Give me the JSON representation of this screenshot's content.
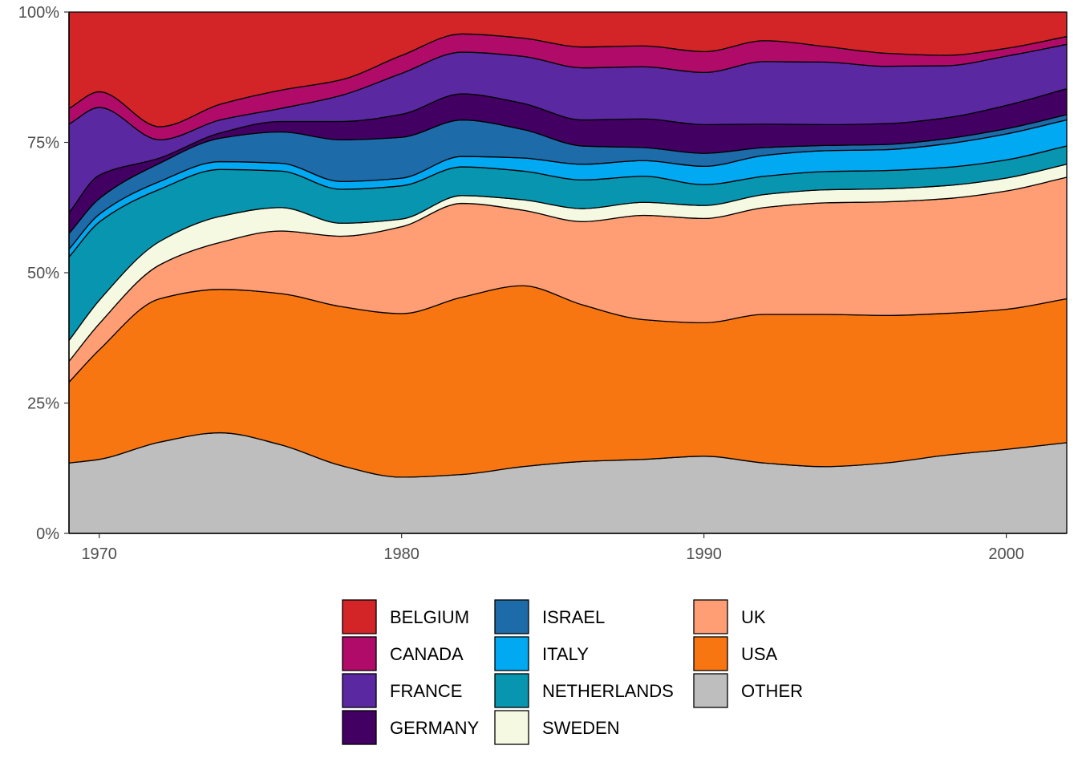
{
  "chart_data": {
    "type": "area",
    "stacked": "percent",
    "smooth": true,
    "title": "",
    "xlabel": "",
    "ylabel": "",
    "xlim": [
      1969,
      2002
    ],
    "ylim": [
      0,
      100
    ],
    "x_ticks": [
      1970,
      1980,
      1990,
      2000
    ],
    "x_tick_labels": [
      "1970",
      "1980",
      "1990",
      "2000"
    ],
    "y_ticks": [
      0,
      25,
      50,
      75,
      100
    ],
    "y_tick_labels": [
      "0%",
      "25%",
      "50%",
      "75%",
      "100%"
    ],
    "grid": false,
    "legend_position": "bottom",
    "stack_order_bottom_to_top": [
      "OTHER",
      "USA",
      "UK",
      "SWEDEN",
      "NETHERLANDS",
      "ITALY",
      "ISRAEL",
      "GERMANY",
      "FRANCE",
      "CANADA",
      "BELGIUM"
    ],
    "x": [
      1969,
      1970,
      1972,
      1974,
      1976,
      1978,
      1980,
      1982,
      1984,
      1986,
      1988,
      1990,
      1992,
      1994,
      1996,
      1998,
      2000,
      2002
    ],
    "series": [
      {
        "name": "OTHER",
        "color": "#BEBEBE",
        "values": [
          13.5,
          14.2,
          17.5,
          19.3,
          17.0,
          13.0,
          11.0,
          11.3,
          12.8,
          13.8,
          14.2,
          14.8,
          13.5,
          12.8,
          13.5,
          15.0,
          16.2,
          17.4
        ]
      },
      {
        "name": "USA",
        "color": "#F87612",
        "values": [
          15.5,
          21.0,
          27.5,
          27.5,
          29.0,
          30.5,
          32.0,
          34.0,
          34.7,
          30.0,
          26.8,
          25.6,
          28.5,
          29.2,
          28.3,
          27.2,
          27.0,
          27.6
        ]
      },
      {
        "name": "UK",
        "color": "#FF9E75",
        "values": [
          4.0,
          5.0,
          6.5,
          9.0,
          12.0,
          13.5,
          17.0,
          18.0,
          14.5,
          16.0,
          20.0,
          20.0,
          20.5,
          21.4,
          21.8,
          22.0,
          22.8,
          23.3
        ]
      },
      {
        "name": "SWEDEN",
        "color": "#F5F9E2",
        "values": [
          4.0,
          4.5,
          4.5,
          5.0,
          4.5,
          2.5,
          1.5,
          1.5,
          2.0,
          2.5,
          2.5,
          2.5,
          2.5,
          2.5,
          2.5,
          2.5,
          2.5,
          2.5
        ]
      },
      {
        "name": "NETHERLANDS",
        "color": "#0895AF",
        "values": [
          16.0,
          15.0,
          10.0,
          9.0,
          7.0,
          6.5,
          6.5,
          5.5,
          5.5,
          5.5,
          5.0,
          4.0,
          3.5,
          3.5,
          3.5,
          3.5,
          3.5,
          3.5
        ]
      },
      {
        "name": "ITALY",
        "color": "#00A9F1",
        "values": [
          1.5,
          1.5,
          1.5,
          1.5,
          1.5,
          1.5,
          1.5,
          2.0,
          2.5,
          3.0,
          3.0,
          3.5,
          4.0,
          4.0,
          4.0,
          4.5,
          5.0,
          5.0
        ]
      },
      {
        "name": "ISRAEL",
        "color": "#1D6BA8",
        "values": [
          3.0,
          3.0,
          3.5,
          4.5,
          6.0,
          8.0,
          8.0,
          7.0,
          5.5,
          3.5,
          2.5,
          2.5,
          1.5,
          1.0,
          1.0,
          1.0,
          1.0,
          1.0
        ]
      },
      {
        "name": "GERMANY",
        "color": "#430063",
        "values": [
          4.0,
          4.5,
          1.0,
          1.0,
          2.0,
          3.5,
          4.5,
          5.0,
          5.0,
          5.0,
          5.5,
          5.5,
          4.5,
          4.0,
          4.0,
          4.0,
          4.5,
          5.0
        ]
      },
      {
        "name": "FRANCE",
        "color": "#5A28A0",
        "values": [
          17.0,
          13.0,
          3.5,
          2.5,
          2.5,
          5.0,
          8.0,
          8.0,
          9.0,
          10.0,
          10.0,
          10.0,
          12.0,
          12.0,
          11.0,
          10.0,
          9.5,
          8.5
        ]
      },
      {
        "name": "CANADA",
        "color": "#B00B69",
        "values": [
          3.0,
          3.0,
          2.5,
          3.0,
          3.5,
          3.0,
          3.5,
          3.5,
          3.5,
          4.0,
          4.0,
          4.0,
          4.0,
          3.0,
          2.5,
          2.0,
          1.5,
          1.5
        ]
      },
      {
        "name": "BELGIUM",
        "color": "#D32427",
        "values": [
          18.5,
          15.3,
          22.0,
          17.7,
          15.0,
          13.0,
          8.5,
          4.2,
          5.0,
          6.7,
          6.5,
          7.6,
          5.5,
          6.6,
          7.9,
          8.3,
          7.0,
          4.7
        ]
      }
    ],
    "legend": {
      "columns": [
        [
          "BELGIUM",
          "CANADA",
          "FRANCE",
          "GERMANY"
        ],
        [
          "ISRAEL",
          "ITALY",
          "NETHERLANDS",
          "SWEDEN"
        ],
        [
          "UK",
          "USA",
          "OTHER"
        ]
      ]
    }
  }
}
